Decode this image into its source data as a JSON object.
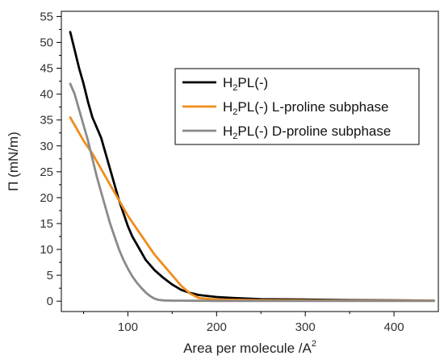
{
  "chart_data": {
    "type": "line",
    "xlabel": "Area per molecule /A",
    "xlabel_superscript": "2",
    "ylabel": "Π (mN/m)",
    "xlim": [
      25,
      450
    ],
    "ylim": [
      -2,
      56
    ],
    "x_ticks": [
      100,
      200,
      300,
      400
    ],
    "y_ticks": [
      0,
      5,
      10,
      15,
      20,
      25,
      30,
      35,
      40,
      45,
      50,
      55
    ],
    "grid": false,
    "legend_position": "top-right",
    "series": [
      {
        "name": [
          "H",
          "2",
          "PL(-)"
        ],
        "color": "#000000",
        "x": [
          35,
          40,
          45,
          50,
          55,
          60,
          65,
          70,
          75,
          80,
          85,
          90,
          95,
          100,
          105,
          110,
          120,
          130,
          140,
          150,
          160,
          170,
          180,
          200,
          220,
          250,
          300,
          350,
          400,
          445
        ],
        "y": [
          52,
          48.5,
          45,
          42,
          38.5,
          35.5,
          33.5,
          31.5,
          28.5,
          25.5,
          22.5,
          19.5,
          17,
          14.5,
          12.5,
          11,
          8,
          6,
          4.5,
          3.2,
          2.2,
          1.6,
          1.2,
          0.8,
          0.6,
          0.4,
          0.3,
          0.2,
          0.15,
          0.1
        ]
      },
      {
        "name": [
          "H",
          "2",
          "PL(-) L-proline subphase"
        ],
        "color": "#f08c1e",
        "x": [
          35,
          50,
          60,
          70,
          80,
          90,
          100,
          110,
          120,
          130,
          140,
          150,
          160,
          170,
          180,
          200,
          250,
          300,
          350,
          400,
          445
        ],
        "y": [
          35.5,
          31,
          28.5,
          25.5,
          22.5,
          19.5,
          16.5,
          14,
          11.5,
          9,
          7,
          5,
          3,
          1.5,
          0.6,
          0.3,
          0.2,
          0.15,
          0.1,
          0.1,
          0.1
        ]
      },
      {
        "name": [
          "H",
          "2",
          "PL(-) D-proline subphase"
        ],
        "color": "#8a8a8a",
        "x": [
          35,
          40,
          45,
          50,
          55,
          60,
          65,
          70,
          75,
          80,
          85,
          90,
          95,
          100,
          105,
          110,
          115,
          120,
          125,
          130,
          135,
          140,
          150,
          160,
          180,
          200,
          300,
          445
        ],
        "y": [
          42,
          40,
          37,
          34,
          31,
          27.5,
          24,
          21,
          18,
          15,
          12.5,
          10,
          8,
          6.3,
          4.8,
          3.6,
          2.6,
          1.7,
          1,
          0.5,
          0.25,
          0.15,
          0.1,
          0.1,
          0.08,
          0.05,
          0.05,
          0.05
        ]
      }
    ]
  }
}
